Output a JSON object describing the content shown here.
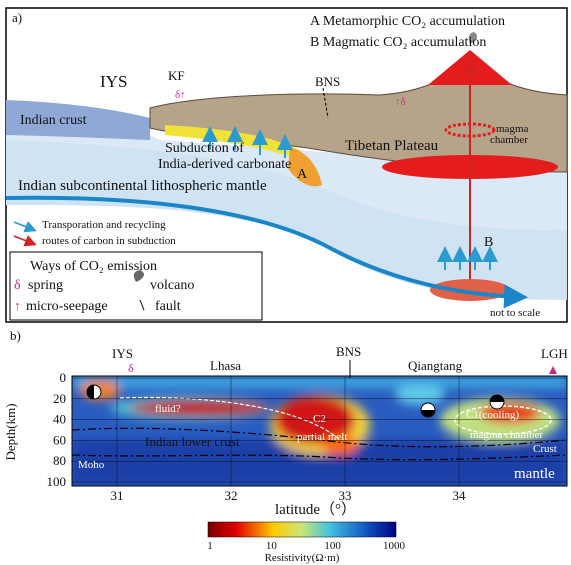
{
  "panel_a": {
    "label": "a)",
    "key_a": "A Metamorphic CO₂ accumulation",
    "key_b": "B Magmatic CO₂ accumulation",
    "iys": "IYS",
    "kf": "KF",
    "bns": "BNS",
    "indian_crust": "Indian crust",
    "carbonate_1": "Subduction of",
    "carbonate_2": "India-derived carbonate",
    "tibetan_plateau": "Tibetan Plateau",
    "magma_1": "magma",
    "magma_2": "chamber",
    "marker_a": "A",
    "marker_b": "B",
    "mantle": "Indian subcontinental lithospheric mantle",
    "arrow_note_1": "Transporation and recycling",
    "arrow_note_2": "routes of carbon in subduction",
    "legend_title": "Ways of CO₂ emission",
    "legend_spring": "spring",
    "legend_volcano": "volcano",
    "legend_seepage": "micro-seepage",
    "legend_fault": "fault",
    "scale_note": "not to scale"
  },
  "panel_b": {
    "label": "b)",
    "top_labels": [
      "IYS",
      "Lhasa",
      "BNS",
      "Qiangtang",
      "LGH"
    ],
    "depth_ticks": [
      0,
      20,
      40,
      60,
      80,
      100
    ],
    "latitude_ticks": [
      31,
      32,
      33,
      34
    ],
    "y_title": "Depth(km)",
    "x_title": "latitude（°）",
    "fluid": "fluid?",
    "c2": "C2",
    "partial_melt": "partial melt",
    "lower_crust": "Indian lower crust",
    "moho": "Moho",
    "c1_1": "C1(cooling)",
    "c1_2": "magma chamber",
    "crust": "Crust",
    "mantle": "mantle",
    "colorbar_ticks": [
      1,
      10,
      100,
      1000
    ],
    "colorbar_title": "Resistivity(Ω·m)"
  }
}
